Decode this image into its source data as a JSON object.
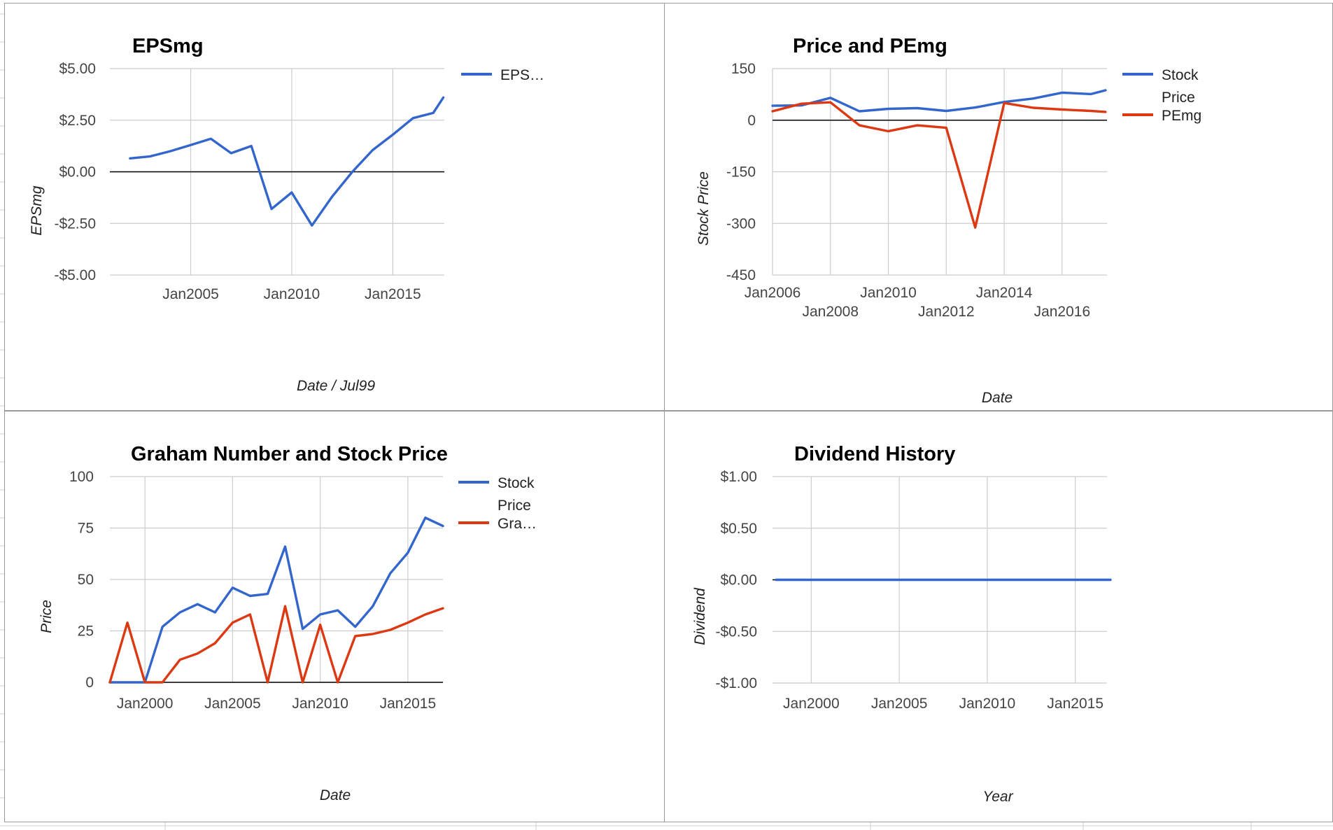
{
  "colors": {
    "blue": "#3366cc",
    "red": "#dc3912",
    "grid": "#cccccc",
    "zero": "#000000"
  },
  "chart_data": [
    {
      "type": "line",
      "title": "EPSmg",
      "xlabel": "Date / Jul99",
      "ylabel": "EPSmg",
      "x_ticks": [
        "Jan2005",
        "Jan2010",
        "Jan2015"
      ],
      "y_ticks": [
        "$5.00",
        "$2.50",
        "$0.00",
        "-$2.50",
        "-$5.00"
      ],
      "ylim": [
        -5,
        5
      ],
      "grid": true,
      "legend_position": "right",
      "x": [
        "Jan2002",
        "Jan2003",
        "Jan2004",
        "Jan2005",
        "Jan2006",
        "Jan2007",
        "Jan2008",
        "Jan2009",
        "Jan2010",
        "Jan2011",
        "Jan2012",
        "Jan2013",
        "Jan2014",
        "Jan2015",
        "Jan2016",
        "Jan2017",
        "Jul2017"
      ],
      "series": [
        {
          "name": "EPS…",
          "color": "blue",
          "values": [
            0.65,
            0.75,
            1.0,
            1.3,
            1.6,
            0.9,
            1.25,
            -1.8,
            -1.0,
            -2.6,
            -1.2,
            0.0,
            1.05,
            1.8,
            2.6,
            2.85,
            3.6
          ]
        }
      ]
    },
    {
      "type": "line",
      "title": "Price and PEmg",
      "xlabel": "Date",
      "ylabel": "Stock Price",
      "x_ticks": [
        "Jan2006",
        "Jan2008",
        "Jan2010",
        "Jan2012",
        "Jan2014",
        "Jan2016"
      ],
      "y_ticks": [
        "150",
        "0",
        "-150",
        "-300",
        "-450"
      ],
      "ylim": [
        -450,
        150
      ],
      "grid": true,
      "legend_position": "right",
      "x": [
        "Jan2006",
        "Jan2007",
        "Jan2008",
        "Jan2009",
        "Jan2010",
        "Jan2011",
        "Jan2012",
        "Jan2013",
        "Jan2014",
        "Jan2015",
        "Jan2016",
        "Jan2017",
        "Jul2017"
      ],
      "series": [
        {
          "name": "Stock Price",
          "color": "blue",
          "values": [
            42,
            43,
            65,
            26,
            33,
            35,
            27,
            37,
            53,
            63,
            80,
            76,
            87
          ]
        },
        {
          "name": "PEmg",
          "color": "red",
          "values": [
            26,
            48,
            52,
            -15,
            -32,
            -15,
            -22,
            -312,
            50,
            36,
            31,
            27,
            24
          ]
        }
      ]
    },
    {
      "type": "line",
      "title": "Graham Number and Stock Price",
      "xlabel": "Date",
      "ylabel": "Price",
      "x_ticks": [
        "Jan2000",
        "Jan2005",
        "Jan2010",
        "Jan2015"
      ],
      "y_ticks": [
        "100",
        "75",
        "50",
        "25",
        "0"
      ],
      "ylim": [
        0,
        100
      ],
      "grid": true,
      "legend_position": "right",
      "x": [
        "Jan1998",
        "Jan1999",
        "Jan2000",
        "Jan2001",
        "Jan2002",
        "Jan2003",
        "Jan2004",
        "Jan2005",
        "Jan2006",
        "Jan2007",
        "Jan2008",
        "Jan2009",
        "Jan2010",
        "Jan2011",
        "Jan2012",
        "Jan2013",
        "Jan2014",
        "Jan2015",
        "Jan2016",
        "Jan2017"
      ],
      "series": [
        {
          "name": "Stock Price",
          "color": "blue",
          "values": [
            0,
            0,
            0,
            27,
            34,
            38,
            34,
            46,
            42,
            43,
            66,
            26,
            33,
            35,
            27,
            37,
            53,
            63,
            80,
            76
          ]
        },
        {
          "name": "Gra…",
          "color": "red",
          "values": [
            0,
            29,
            0,
            0,
            11,
            14,
            19,
            29,
            33,
            0,
            37,
            0,
            28,
            0,
            22.5,
            23.5,
            25.5,
            29,
            33,
            36
          ]
        }
      ]
    },
    {
      "type": "line",
      "title": "Dividend History",
      "xlabel": "Year",
      "ylabel": "Dividend",
      "x_ticks": [
        "Jan2000",
        "Jan2005",
        "Jan2010",
        "Jan2015"
      ],
      "y_ticks": [
        "$1.00",
        "$0.50",
        "$0.00",
        "-$0.50",
        "-$1.00"
      ],
      "ylim": [
        -1,
        1
      ],
      "grid": true,
      "legend_position": "none",
      "x": [
        "Jan1998",
        "Jan2017"
      ],
      "series": [
        {
          "color": "blue",
          "values": [
            0,
            0
          ]
        }
      ]
    }
  ]
}
